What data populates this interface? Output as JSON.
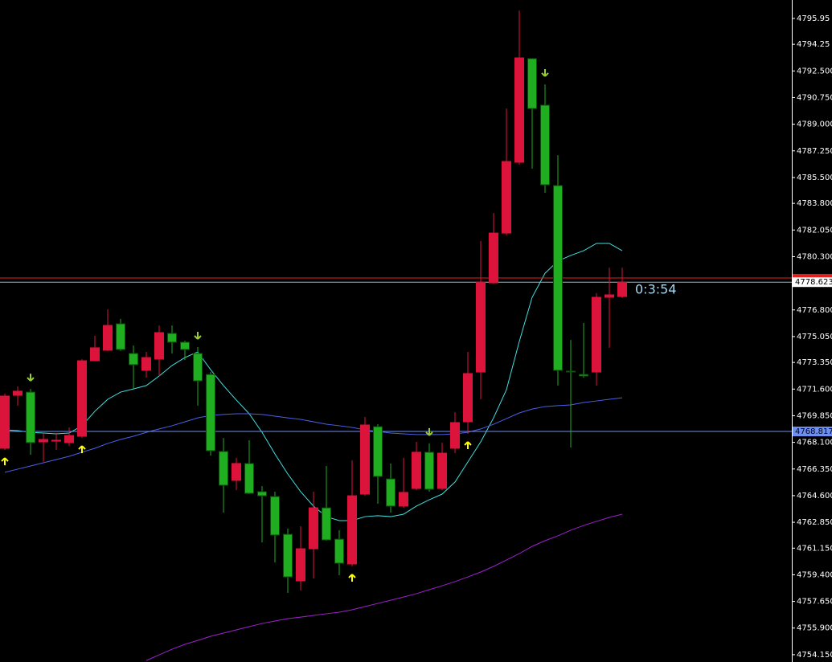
{
  "chart_data": {
    "type": "candlestick",
    "open": [
      4767.71,
      4771.19,
      4771.4,
      4768.13,
      4768.18,
      4768.08,
      4768.5,
      4773.46,
      4774.15,
      4775.89,
      4773.94,
      4772.83,
      4773.57,
      4775.26,
      4774.68,
      4773.94,
      4772.56,
      4767.5,
      4765.6,
      4766.71,
      4764.86,
      4764.54,
      4762.06,
      4759.0,
      4761.11,
      4763.8,
      4761.74,
      4760.11,
      4764.7,
      4769.13,
      4765.7,
      4763.91,
      4765.07,
      4767.45,
      4765.07,
      4767.71,
      4769.45,
      4772.72,
      4778.58,
      4781.85,
      4786.5,
      4793.31,
      4790.25,
      4784.97,
      4772.78,
      4772.56,
      4772.72,
      4777.63,
      4777.68
    ],
    "high": [
      4771.3,
      4771.77,
      4771.61,
      4768.66,
      4768.66,
      4769.08,
      4773.57,
      4775.1,
      4776.84,
      4776.21,
      4774.46,
      4774.04,
      4775.78,
      4775.78,
      4774.78,
      4774.36,
      4772.72,
      4768.39,
      4767.08,
      4768.24,
      4765.23,
      4764.86,
      4762.43,
      4762.59,
      4764.86,
      4766.55,
      4762.33,
      4766.92,
      4769.77,
      4769.29,
      4766.71,
      4767.08,
      4768.13,
      4768.03,
      4768.08,
      4770.08,
      4774.04,
      4781.33,
      4783.17,
      4790.03,
      4796.47,
      4793.31,
      4791.62,
      4786.97,
      4774.83,
      4775.94,
      4777.9,
      4779.58,
      4779.58
    ],
    "low": [
      4767.6,
      4770.51,
      4767.29,
      4766.81,
      4767.6,
      4767.87,
      4768.39,
      4773.46,
      4774.1,
      4774.1,
      4771.61,
      4772.35,
      4772.46,
      4773.94,
      4773.51,
      4770.51,
      4767.23,
      4763.49,
      4764.96,
      4764.7,
      4761.53,
      4760.21,
      4758.21,
      4758.37,
      4759.16,
      4761.64,
      4759.37,
      4759.95,
      4764.59,
      4764.07,
      4763.49,
      4763.8,
      4764.96,
      4764.86,
      4764.96,
      4767.39,
      4768.66,
      4770.93,
      4778.53,
      4781.7,
      4786.34,
      4786.08,
      4784.49,
      4771.83,
      4767.76,
      4772.35,
      4771.83,
      4774.31,
      4777.58
    ],
    "close": [
      4771.14,
      4771.46,
      4768.08,
      4768.29,
      4768.24,
      4768.55,
      4773.46,
      4774.31,
      4775.78,
      4774.2,
      4773.2,
      4773.67,
      4775.31,
      4774.68,
      4774.2,
      4772.14,
      4767.55,
      4765.28,
      4766.71,
      4764.75,
      4764.59,
      4762.01,
      4759.26,
      4761.11,
      4763.8,
      4761.69,
      4760.16,
      4764.59,
      4769.24,
      4765.86,
      4763.91,
      4764.81,
      4767.45,
      4765.02,
      4767.39,
      4769.4,
      4772.62,
      4778.63,
      4781.85,
      4786.55,
      4793.36,
      4790.03,
      4785.02,
      4772.83,
      4772.72,
      4772.46,
      4777.63,
      4777.79,
      4778.623
    ],
    "bull_color": "#dc143c",
    "bear_color": "#1fae1f",
    "series": [
      {
        "color": "#40e0e0",
        "values": [
          4768.92,
          4768.87,
          4768.76,
          4768.71,
          4768.66,
          4768.71,
          4769.19,
          4770.14,
          4770.93,
          4771.4,
          4771.61,
          4771.83,
          4772.46,
          4773.15,
          4773.67,
          4774.04,
          4772.88,
          4771.83,
          4770.88,
          4769.98,
          4768.76,
          4767.34,
          4766.02,
          4764.86,
          4763.91,
          4763.22,
          4762.96,
          4762.96,
          4763.22,
          4763.28,
          4763.22,
          4763.38,
          4763.91,
          4764.33,
          4764.7,
          4765.49,
          4766.81,
          4768.13,
          4769.71,
          4771.56,
          4774.73,
          4777.63,
          4779.21,
          4780.01,
          4780.38,
          4780.69,
          4781.17,
          4781.17,
          4780.69
        ]
      },
      {
        "color": "#4a60e8",
        "values": [
          4766.13,
          4766.34,
          4766.55,
          4766.76,
          4766.97,
          4767.18,
          4767.45,
          4767.71,
          4768.03,
          4768.29,
          4768.5,
          4768.76,
          4768.98,
          4769.19,
          4769.45,
          4769.71,
          4769.87,
          4769.93,
          4769.98,
          4769.98,
          4769.93,
          4769.82,
          4769.71,
          4769.61,
          4769.45,
          4769.29,
          4769.19,
          4769.08,
          4768.92,
          4768.82,
          4768.71,
          4768.66,
          4768.61,
          4768.61,
          4768.61,
          4768.66,
          4768.76,
          4768.98,
          4769.29,
          4769.66,
          4770.03,
          4770.29,
          4770.45,
          4770.51,
          4770.56,
          4770.72,
          4770.82,
          4770.93,
          4771.03
        ]
      },
      {
        "color": "#a020d0",
        "values": [
          null,
          null,
          null,
          null,
          null,
          null,
          null,
          null,
          null,
          null,
          null,
          4753.77,
          4754.14,
          4754.51,
          4754.83,
          4755.09,
          4755.36,
          4755.57,
          4755.78,
          4755.99,
          4756.2,
          4756.36,
          4756.52,
          4756.62,
          4756.73,
          4756.84,
          4756.94,
          4757.1,
          4757.31,
          4757.52,
          4757.73,
          4757.94,
          4758.16,
          4758.42,
          4758.68,
          4758.95,
          4759.26,
          4759.58,
          4759.95,
          4760.37,
          4760.79,
          4761.27,
          4761.64,
          4761.96,
          4762.33,
          4762.64,
          4762.91,
          4763.17,
          4763.38
        ]
      }
    ],
    "up_arrows": [
      0,
      6,
      27,
      36
    ],
    "down_arrows": [
      2,
      15,
      33,
      42
    ],
    "ylim": [
      4753.67,
      4797.16
    ],
    "yticks": [
      4795.95,
      4794.25,
      {
        "value": 4792.5,
        "label": "4792.500"
      },
      {
        "value": 4790.75,
        "label": "4790.750"
      },
      {
        "value": 4789.0,
        "label": "4789.000"
      },
      {
        "value": 4787.25,
        "label": "4787.250"
      },
      {
        "value": 4785.5,
        "label": "4785.500"
      },
      {
        "value": 4783.8,
        "label": "4783.800"
      },
      {
        "value": 4782.05,
        "label": "4782.050"
      },
      {
        "value": 4780.3,
        "label": "4780.300"
      },
      {
        "value": 4776.8,
        "label": "4776.800"
      },
      {
        "value": 4775.05,
        "label": "4775.050"
      },
      {
        "value": 4773.35,
        "label": "4773.350"
      },
      {
        "value": 4771.6,
        "label": "4771.600"
      },
      {
        "value": 4769.85,
        "label": "4769.850"
      },
      {
        "value": 4768.1,
        "label": "4768.100"
      },
      {
        "value": 4766.35,
        "label": "4766.350"
      },
      {
        "value": 4764.6,
        "label": "4764.600"
      },
      {
        "value": 4762.85,
        "label": "4762.850"
      },
      {
        "value": 4761.15,
        "label": "4761.150"
      },
      {
        "value": 4759.4,
        "label": "4759.400"
      },
      {
        "value": 4757.65,
        "label": "4757.650"
      },
      {
        "value": 4755.9,
        "label": "4755.900"
      },
      {
        "value": 4754.15,
        "label": "4754.150"
      }
    ],
    "ask_line": 4778.9,
    "bid_line": 4778.623,
    "level_line": 4768.817,
    "timer": "0:3:54"
  }
}
